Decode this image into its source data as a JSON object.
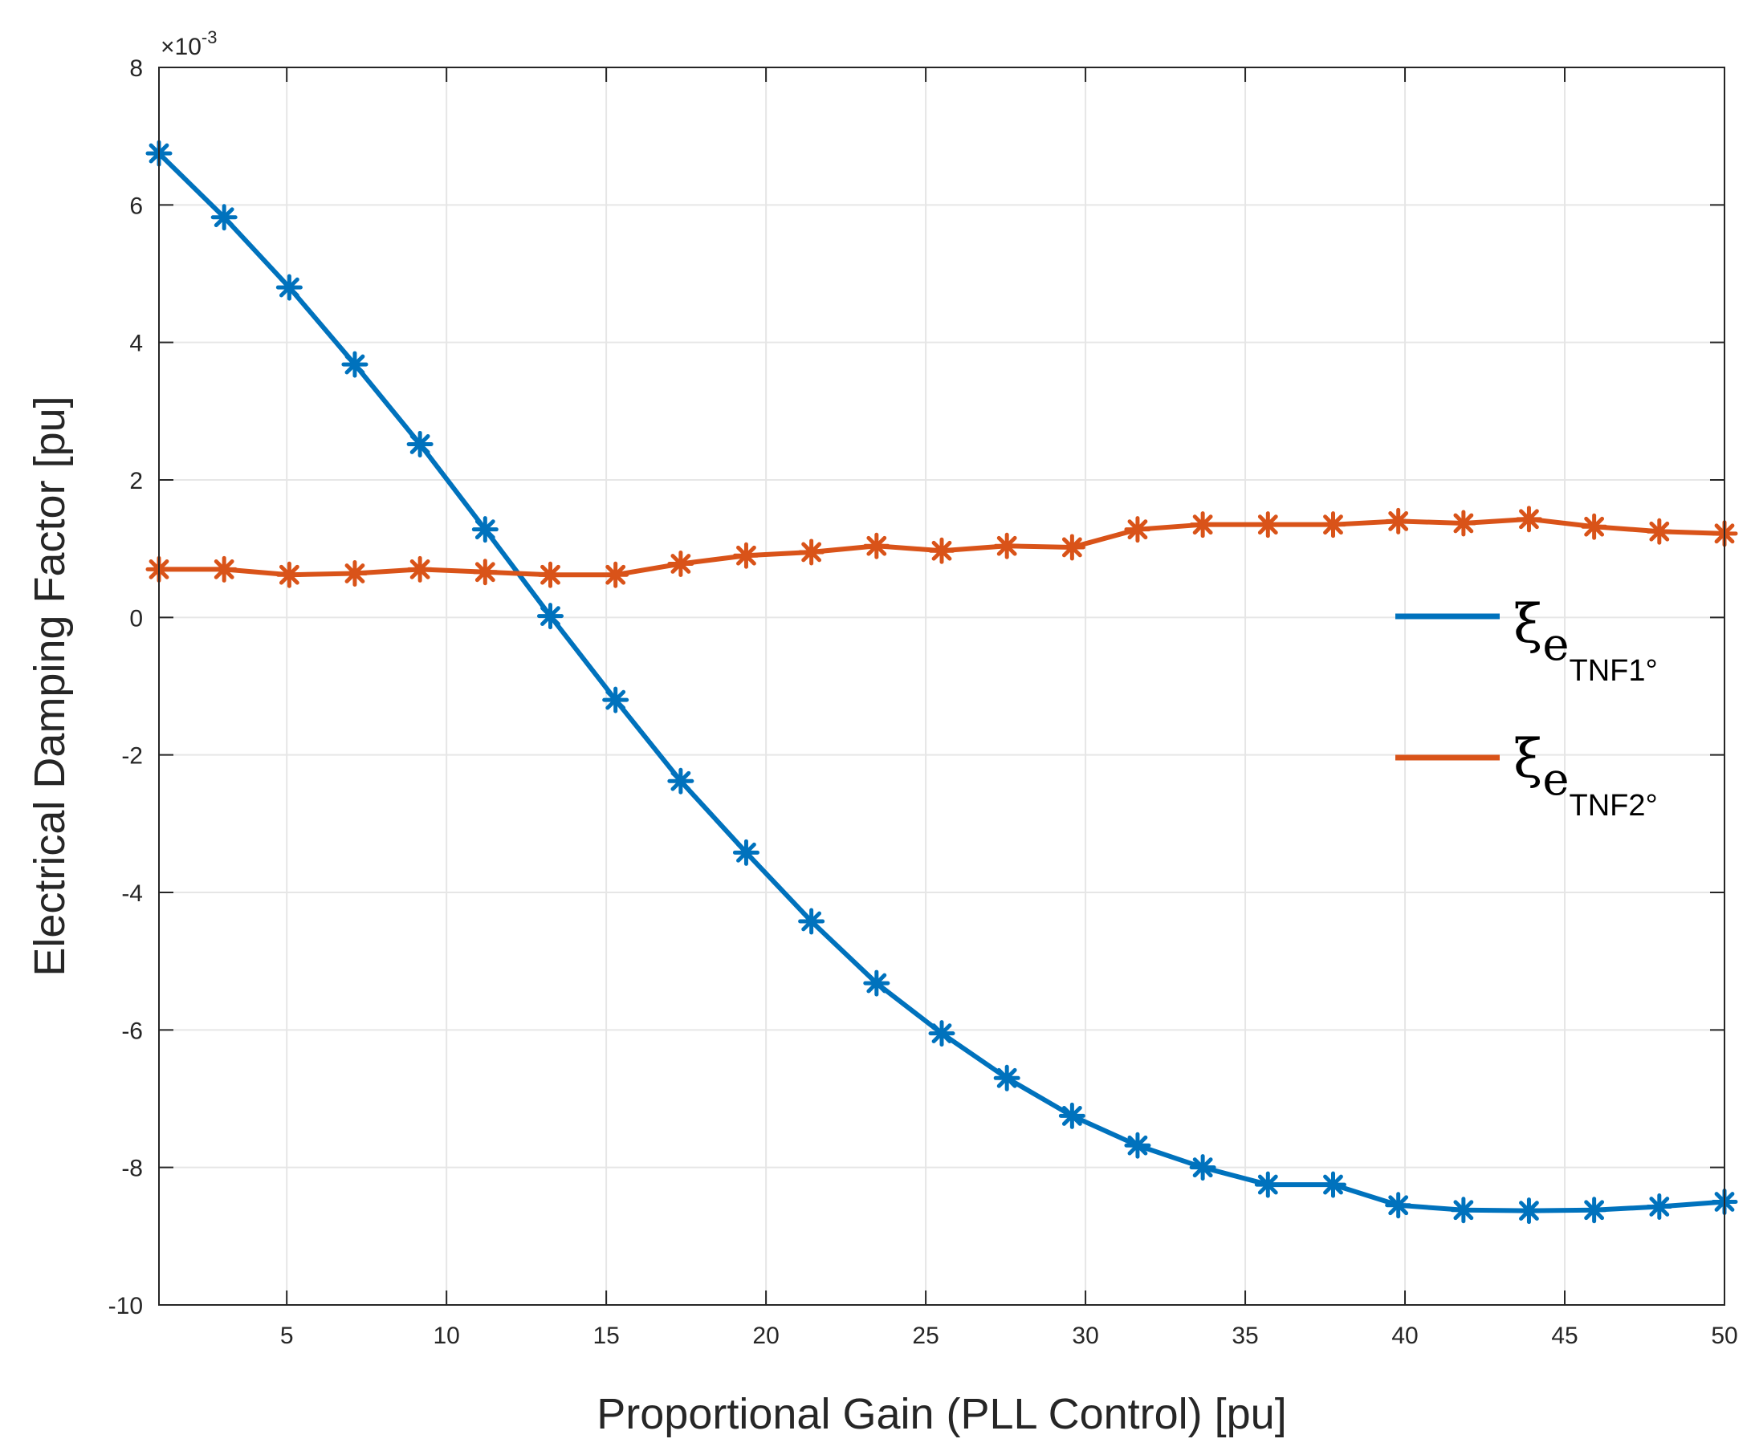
{
  "chart_data": {
    "type": "line",
    "xlabel": "Proportional Gain (PLL Control) [pu]",
    "ylabel": "Electrical Damping Factor [pu]",
    "y_exponent_label": "×10",
    "y_exponent_power": "-3",
    "xlim": [
      1,
      50
    ],
    "ylim": [
      -10,
      8
    ],
    "xticks": [
      "5",
      "10",
      "15",
      "20",
      "25",
      "30",
      "35",
      "40",
      "45",
      "50"
    ],
    "xtick_values": [
      5,
      10,
      15,
      20,
      25,
      30,
      35,
      40,
      45,
      50
    ],
    "yticks": [
      "8",
      "6",
      "4",
      "2",
      "0",
      "-2",
      "-4",
      "-6",
      "-8",
      "-10"
    ],
    "ytick_values": [
      8,
      6,
      4,
      2,
      0,
      -2,
      -4,
      -6,
      -8,
      -10
    ],
    "grid": true,
    "legend_position": "right",
    "x": [
      1,
      3.04,
      5.08,
      7.13,
      9.17,
      11.21,
      13.25,
      15.29,
      17.33,
      19.38,
      21.42,
      23.46,
      25.5,
      27.54,
      29.58,
      31.63,
      33.67,
      35.71,
      37.75,
      39.79,
      41.83,
      43.88,
      45.92,
      47.96,
      50
    ],
    "series": [
      {
        "legend_symbol": "ξ",
        "legend_sub": "e",
        "legend_subsub": "TNF1°",
        "color": "#0072BD",
        "values": [
          6.75,
          5.82,
          4.8,
          3.68,
          2.52,
          1.28,
          0.02,
          -1.2,
          -2.38,
          -3.42,
          -4.42,
          -5.32,
          -6.05,
          -6.7,
          -7.25,
          -7.68,
          -8.0,
          -8.25,
          -8.25,
          -8.55,
          -8.62,
          -8.63,
          -8.62,
          -8.57,
          -8.5
        ]
      },
      {
        "legend_symbol": "ξ",
        "legend_sub": "e",
        "legend_subsub": "TNF2°",
        "color": "#D95319",
        "values": [
          0.7,
          0.7,
          0.62,
          0.64,
          0.7,
          0.66,
          0.62,
          0.62,
          0.78,
          0.9,
          0.95,
          1.04,
          0.97,
          1.04,
          1.02,
          1.28,
          1.35,
          1.35,
          1.35,
          1.4,
          1.37,
          1.43,
          1.32,
          1.25,
          1.22
        ]
      }
    ]
  }
}
